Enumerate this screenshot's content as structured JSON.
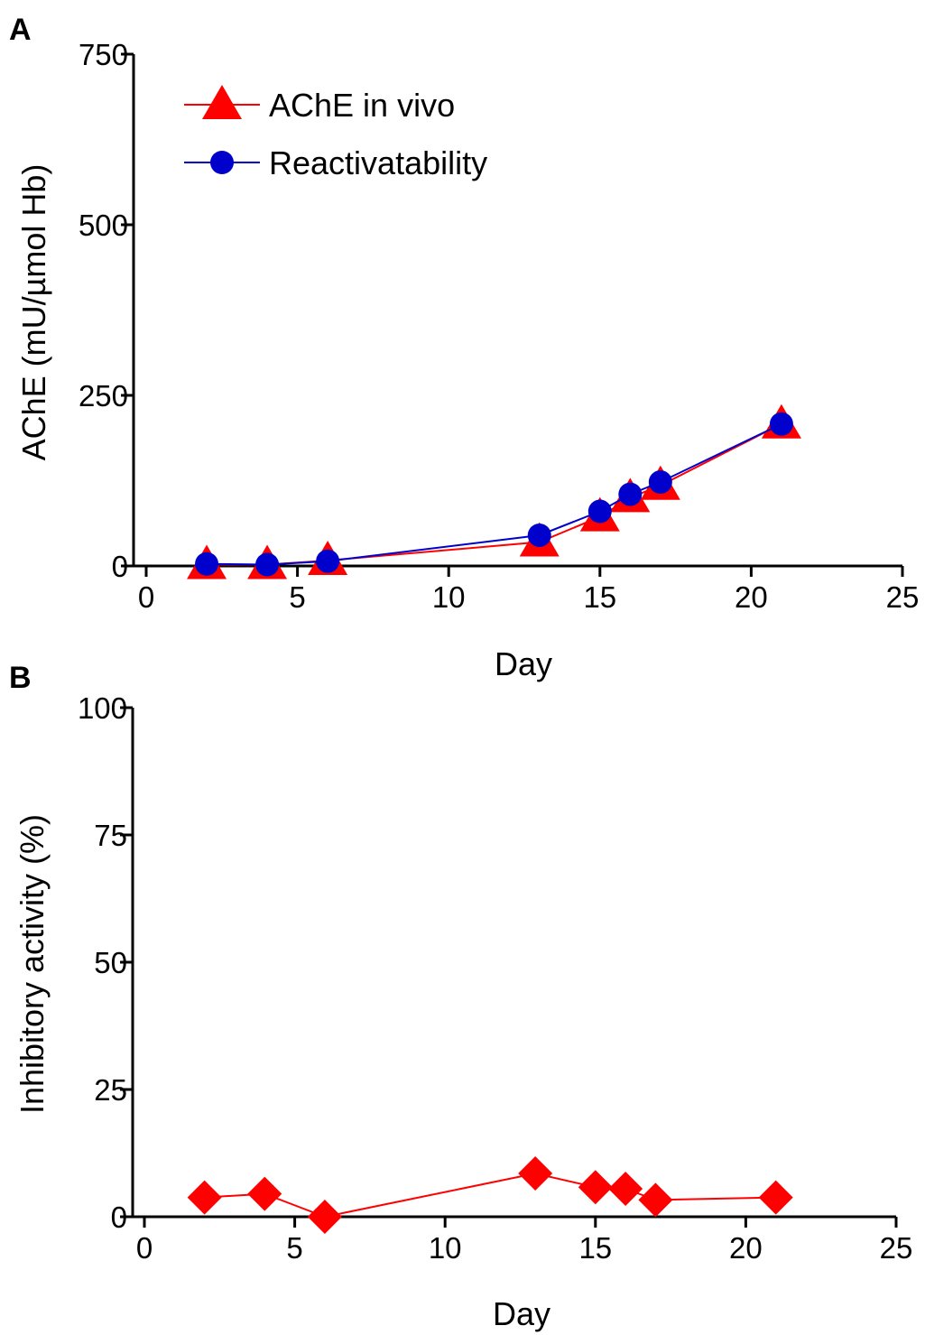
{
  "chart_data": [
    {
      "type": "line",
      "panel": "A",
      "xlabel": "Day",
      "ylabel": "AChE (mU/µmol Hb)",
      "xlim": [
        0,
        25
      ],
      "ylim": [
        0,
        750
      ],
      "xticks": [
        0,
        5,
        10,
        15,
        20,
        25
      ],
      "yticks": [
        0,
        250,
        500,
        750
      ],
      "grid": false,
      "legend_position": "top-left",
      "series": [
        {
          "name": "AChE in vivo",
          "color": "#ff0000",
          "marker": "triangle",
          "x": [
            2,
            4,
            6,
            13,
            15,
            16,
            17,
            21
          ],
          "y": [
            2,
            2,
            8,
            35,
            72,
            100,
            118,
            208
          ]
        },
        {
          "name": "Reactivatability",
          "color": "#0000cc",
          "marker": "circle",
          "x": [
            2,
            4,
            6,
            13,
            15,
            16,
            17,
            21
          ],
          "y": [
            3,
            2,
            7,
            45,
            80,
            105,
            123,
            208
          ]
        }
      ]
    },
    {
      "type": "line",
      "panel": "B",
      "xlabel": "Day",
      "ylabel": "Inhibitory activity (%)",
      "xlim": [
        0,
        25
      ],
      "ylim": [
        0,
        100
      ],
      "xticks": [
        0,
        5,
        10,
        15,
        20,
        25
      ],
      "yticks": [
        0,
        25,
        50,
        75,
        100
      ],
      "grid": false,
      "series": [
        {
          "color": "#ff0000",
          "marker": "diamond",
          "x": [
            2,
            4,
            6,
            13,
            15,
            16,
            17,
            21
          ],
          "y": [
            3.8,
            4.5,
            0,
            8.5,
            5.8,
            5.5,
            3.3,
            3.8
          ]
        }
      ]
    }
  ]
}
